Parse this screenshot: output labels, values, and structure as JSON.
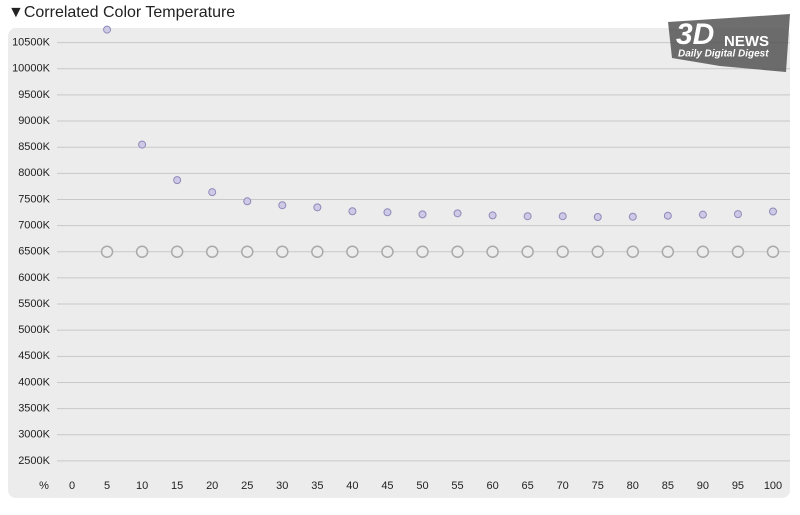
{
  "chart_data": {
    "type": "scatter",
    "title": "▼Correlated Color Temperature",
    "x_label": "%",
    "x": [
      5,
      10,
      15,
      20,
      25,
      30,
      35,
      40,
      45,
      50,
      55,
      60,
      65,
      70,
      75,
      80,
      85,
      90,
      95,
      100
    ],
    "series": [
      {
        "color": "#8f8ab8",
        "hollow": false,
        "values": [
          10750,
          8550,
          7870,
          7640,
          7465,
          7390,
          7350,
          7275,
          7255,
          7215,
          7235,
          7195,
          7180,
          7180,
          7165,
          7170,
          7190,
          7210,
          7220,
          7270
        ]
      },
      {
        "color": "#a9a9a9",
        "hollow": true,
        "values": [
          6500,
          6500,
          6500,
          6500,
          6500,
          6500,
          6500,
          6500,
          6500,
          6500,
          6500,
          6500,
          6500,
          6500,
          6500,
          6500,
          6500,
          6500,
          6500,
          6500
        ]
      }
    ],
    "xlim": [
      0,
      100
    ],
    "xticks": [
      0,
      5,
      10,
      15,
      20,
      25,
      30,
      35,
      40,
      45,
      50,
      55,
      60,
      65,
      70,
      75,
      80,
      85,
      90,
      95,
      100
    ],
    "ylim": [
      2230,
      10780
    ],
    "yticks": [
      {
        "value": 2500,
        "label": "2500K"
      },
      {
        "value": 3000,
        "label": "3000K"
      },
      {
        "value": 3500,
        "label": "3500K"
      },
      {
        "value": 4000,
        "label": "4000K"
      },
      {
        "value": 4500,
        "label": "4500K"
      },
      {
        "value": 5000,
        "label": "5000K"
      },
      {
        "value": 5500,
        "label": "5500K"
      },
      {
        "value": 6000,
        "label": "6000K"
      },
      {
        "value": 6500,
        "label": "6500K"
      },
      {
        "value": 7000,
        "label": "7000K"
      },
      {
        "value": 7500,
        "label": "7500K"
      },
      {
        "value": 8000,
        "label": "8000K"
      },
      {
        "value": 8500,
        "label": "8500K"
      },
      {
        "value": 9000,
        "label": "9000K"
      },
      {
        "value": 9500,
        "label": "9500K"
      },
      {
        "value": 10000,
        "label": "10000K"
      },
      {
        "value": 10500,
        "label": "10500K"
      }
    ],
    "grid": true,
    "watermark": {
      "logo": "3D",
      "brand": "NEWS",
      "tagline": "Daily Digital Digest"
    }
  }
}
